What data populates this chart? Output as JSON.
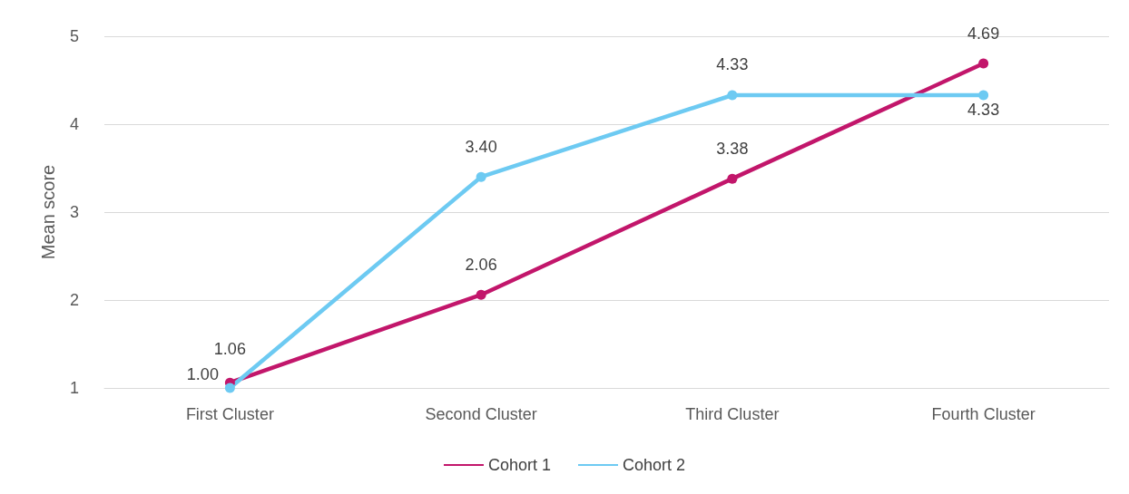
{
  "chart_data": {
    "type": "line",
    "ylabel": "Mean score",
    "categories": [
      "First Cluster",
      "Second Cluster",
      "Third Cluster",
      "Fourth Cluster"
    ],
    "series": [
      {
        "name": "Cohort 1",
        "color": "#c2166b",
        "values": [
          1.06,
          2.06,
          3.38,
          4.69
        ],
        "value_labels": [
          "1.06",
          "2.06",
          "3.38",
          "4.69"
        ]
      },
      {
        "name": "Cohort 2",
        "color": "#6dcaf2",
        "values": [
          1.0,
          3.4,
          4.33,
          4.33
        ],
        "value_labels": [
          "1.00",
          "3.40",
          "4.33",
          "4.33"
        ]
      }
    ],
    "ylim": [
      1,
      5
    ],
    "yticks": [
      1,
      2,
      3,
      4,
      5
    ],
    "grid": "y",
    "legend": "bottom",
    "marker": "circle",
    "line_style": "solid"
  }
}
